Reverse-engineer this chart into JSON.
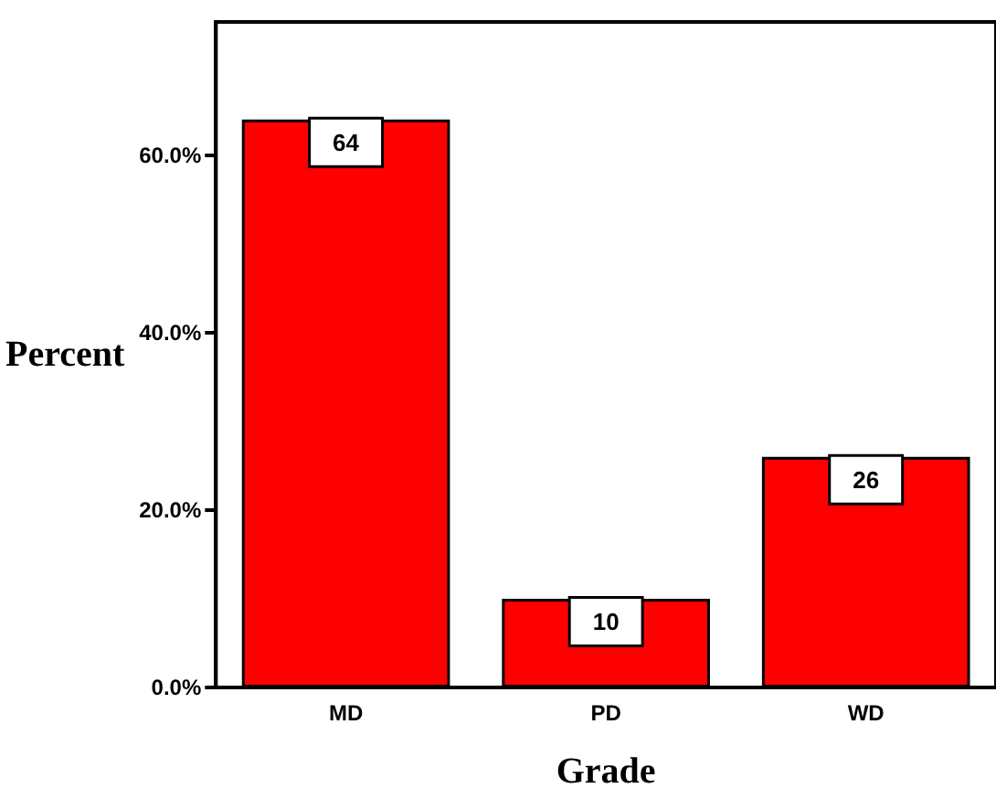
{
  "chart_data": {
    "type": "bar",
    "xlabel": "Grade",
    "ylabel": "Percent",
    "categories": [
      "MD",
      "PD",
      "WD"
    ],
    "values": [
      64,
      10,
      26
    ],
    "color": "#ff0000",
    "ylim": [
      0,
      75
    ],
    "yticks": [
      {
        "value": 0,
        "label": "0.0%"
      },
      {
        "value": 20,
        "label": "20.0%"
      },
      {
        "value": 40,
        "label": "40.0%"
      },
      {
        "value": 60,
        "label": "60.0%"
      }
    ],
    "data_labels": true
  }
}
